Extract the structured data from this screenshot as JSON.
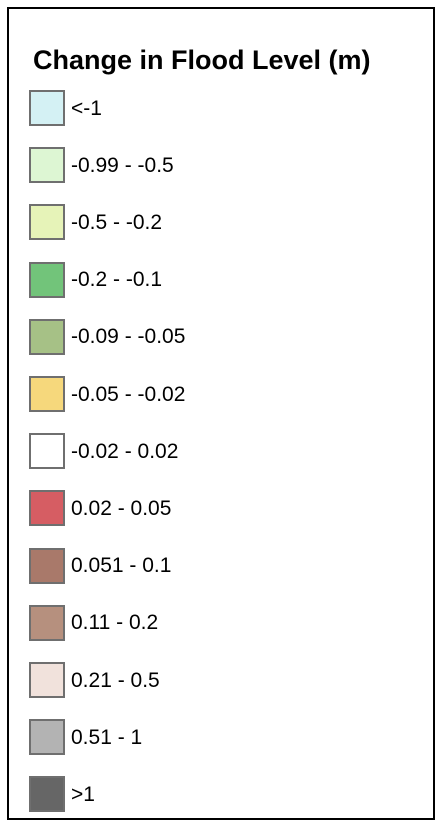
{
  "legend": {
    "title": "Change in Flood Level (m)",
    "items": [
      {
        "label": "<-1",
        "color": "#d4f1f4"
      },
      {
        "label": "-0.99 - -0.5",
        "color": "#ddf6d3"
      },
      {
        "label": "-0.5 - -0.2",
        "color": "#e6f3b8"
      },
      {
        "label": "-0.2 - -0.1",
        "color": "#72c47a"
      },
      {
        "label": "-0.09 - -0.05",
        "color": "#a6c186"
      },
      {
        "label": "-0.05 - -0.02",
        "color": "#f6d87c"
      },
      {
        "label": "-0.02 - 0.02",
        "color": "#ffffff"
      },
      {
        "label": "0.02 - 0.05",
        "color": "#d65d63"
      },
      {
        "label": "0.051 - 0.1",
        "color": "#a9796a"
      },
      {
        "label": "0.11 - 0.2",
        "color": "#b6907e"
      },
      {
        "label": "0.21 - 0.5",
        "color": "#f1e2dc"
      },
      {
        "label": "0.51 - 1",
        "color": "#b3b3b3"
      },
      {
        "label": ">1",
        "color": "#666666"
      }
    ]
  }
}
